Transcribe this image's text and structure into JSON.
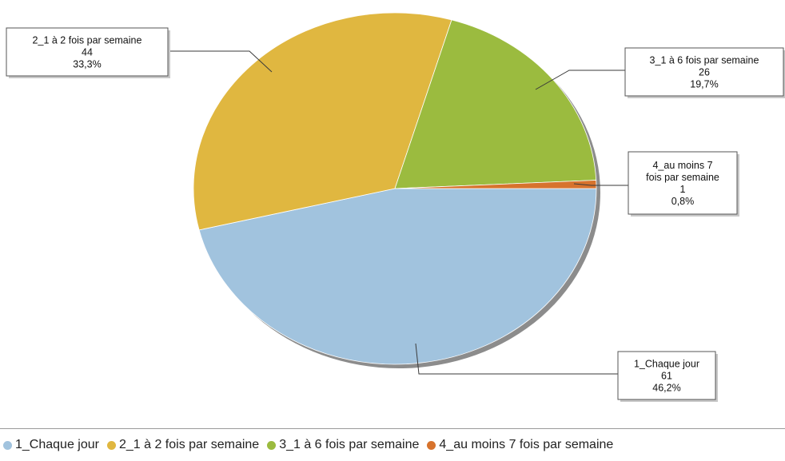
{
  "chart_data": {
    "type": "pie",
    "title": "",
    "slices": [
      {
        "key": "chaque_jour",
        "label": "1_Chaque jour",
        "value": 61,
        "percent": "46,2%",
        "color": "#a1c3de",
        "box_lines": [
          "1_Chaque jour",
          "61",
          "46,2%"
        ]
      },
      {
        "key": "un_a_deux",
        "label": "2_1 à 2 fois par semaine",
        "value": 44,
        "percent": "33,3%",
        "color": "#e0b740",
        "box_lines": [
          "2_1 à 2 fois par semaine",
          "44",
          "33,3%"
        ]
      },
      {
        "key": "un_a_six",
        "label": "3_1 à 6 fois par semaine",
        "value": 26,
        "percent": "19,7%",
        "color": "#9bbb3f",
        "box_lines": [
          "3_1 à 6 fois par semaine",
          "26",
          "19,7%"
        ]
      },
      {
        "key": "sept",
        "label": "4_au moins 7 fois par  semaine",
        "value": 1,
        "percent": "0,8%",
        "color": "#d7732d",
        "box_lines": [
          "4_au moins 7",
          "fois par  semaine",
          "1",
          "0,8%"
        ]
      }
    ],
    "legend": {
      "position": "bottom",
      "items": [
        {
          "key": "chaque_jour",
          "label": "1_Chaque jour",
          "color": "#a1c3de"
        },
        {
          "key": "un_a_deux",
          "label": "2_1 à 2 fois par semaine",
          "color": "#e0b740"
        },
        {
          "key": "un_a_six",
          "label": "3_1 à 6 fois par semaine",
          "color": "#9bbb3f"
        },
        {
          "key": "sept",
          "label": "4_au moins 7 fois par  semaine",
          "color": "#d7732d"
        }
      ]
    }
  }
}
